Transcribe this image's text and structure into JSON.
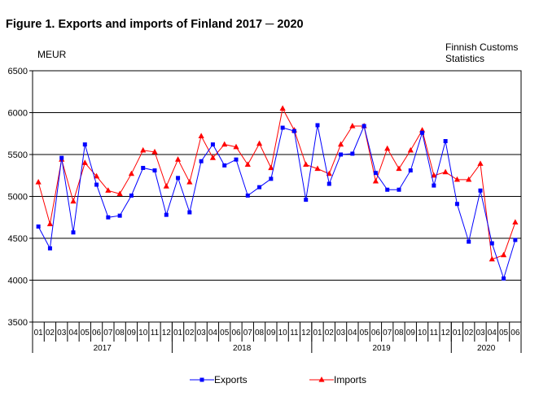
{
  "figure": {
    "title": "Figure 1. Exports and imports of Finland 2017 ─ 2020",
    "unit": "MEUR",
    "source_line1": "Finnish Customs",
    "source_line2": "Statistics"
  },
  "chart_data": {
    "type": "line",
    "title": "Figure 1. Exports and imports of Finland 2017 ─ 2020",
    "ylabel": "MEUR",
    "ylim": [
      3500,
      6500
    ],
    "yticks": [
      3500,
      4000,
      4500,
      5000,
      5500,
      6000,
      6500
    ],
    "grid": true,
    "legend_position": "bottom",
    "years": [
      {
        "label": "2017",
        "months": 12
      },
      {
        "label": "2018",
        "months": 12
      },
      {
        "label": "2019",
        "months": 12
      },
      {
        "label": "2020",
        "months": 6
      }
    ],
    "x": [
      "01",
      "02",
      "03",
      "04",
      "05",
      "06",
      "07",
      "08",
      "09",
      "10",
      "11",
      "12",
      "01",
      "02",
      "03",
      "04",
      "05",
      "06",
      "07",
      "08",
      "09",
      "10",
      "11",
      "12",
      "01",
      "02",
      "03",
      "04",
      "05",
      "06",
      "07",
      "08",
      "09",
      "10",
      "11",
      "12",
      "01",
      "02",
      "03",
      "04",
      "05",
      "06"
    ],
    "series": [
      {
        "name": "Exports",
        "color": "#0000ff",
        "marker": "square",
        "values": [
          4640,
          4380,
          5460,
          4570,
          5620,
          5140,
          4750,
          4770,
          5010,
          5340,
          5310,
          4780,
          5220,
          4810,
          5420,
          5620,
          5370,
          5440,
          5010,
          5110,
          5210,
          5820,
          5780,
          4960,
          5850,
          5150,
          5500,
          5510,
          5840,
          5280,
          5080,
          5080,
          5310,
          5760,
          5130,
          5660,
          4910,
          4460,
          5070,
          4440,
          4020,
          4480
        ]
      },
      {
        "name": "Imports",
        "color": "#ff0000",
        "marker": "triangle",
        "values": [
          5170,
          4670,
          5440,
          4940,
          5400,
          5240,
          5070,
          5030,
          5270,
          5550,
          5530,
          5120,
          5440,
          5170,
          5720,
          5460,
          5620,
          5590,
          5380,
          5630,
          5340,
          6050,
          5790,
          5380,
          5330,
          5270,
          5620,
          5840,
          5840,
          5180,
          5570,
          5330,
          5550,
          5790,
          5250,
          5290,
          5200,
          5200,
          5390,
          4250,
          4300,
          4690
        ]
      }
    ]
  }
}
